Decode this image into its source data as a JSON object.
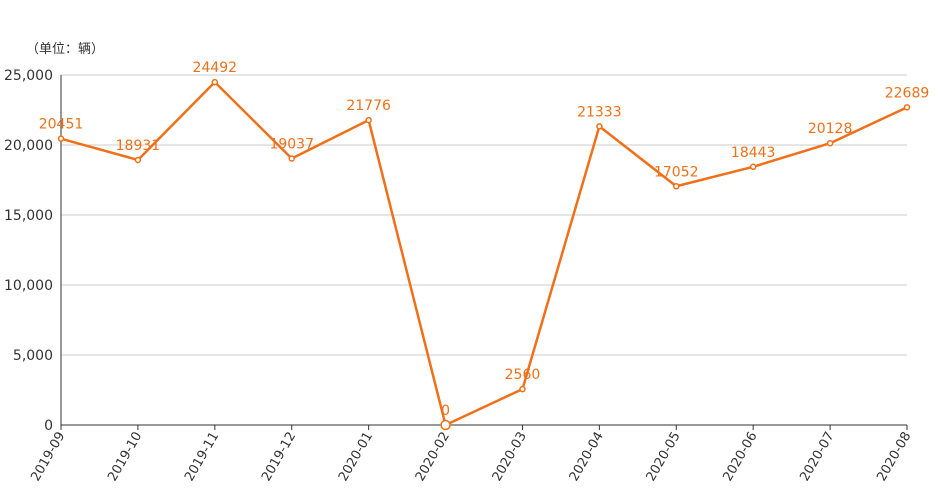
{
  "unit_label": "（单位：辆）",
  "colors": {
    "line": "#F07019",
    "grid": "#cccccc",
    "axis": "#333333",
    "text": "#333333"
  },
  "chart_data": {
    "type": "line",
    "title": "",
    "xlabel": "",
    "ylabel": "（单位：辆）",
    "categories": [
      "2019-09",
      "2019-10",
      "2019-11",
      "2019-12",
      "2020-01",
      "2020-02",
      "2020-03",
      "2020-04",
      "2020-05",
      "2020-06",
      "2020-07",
      "2020-08"
    ],
    "series": [
      {
        "values": [
          20451,
          18931,
          24492,
          19037,
          21776,
          0,
          2560,
          21333,
          17052,
          18443,
          20128,
          22689
        ]
      }
    ],
    "ylim": [
      0,
      25000
    ],
    "yticks": [
      0,
      5000,
      10000,
      15000,
      20000,
      25000
    ],
    "ytick_labels": [
      "0",
      "5,000",
      "10,000",
      "15,000",
      "20,000",
      "25,000"
    ],
    "grid": true,
    "legend": "none",
    "data_labels": true
  }
}
